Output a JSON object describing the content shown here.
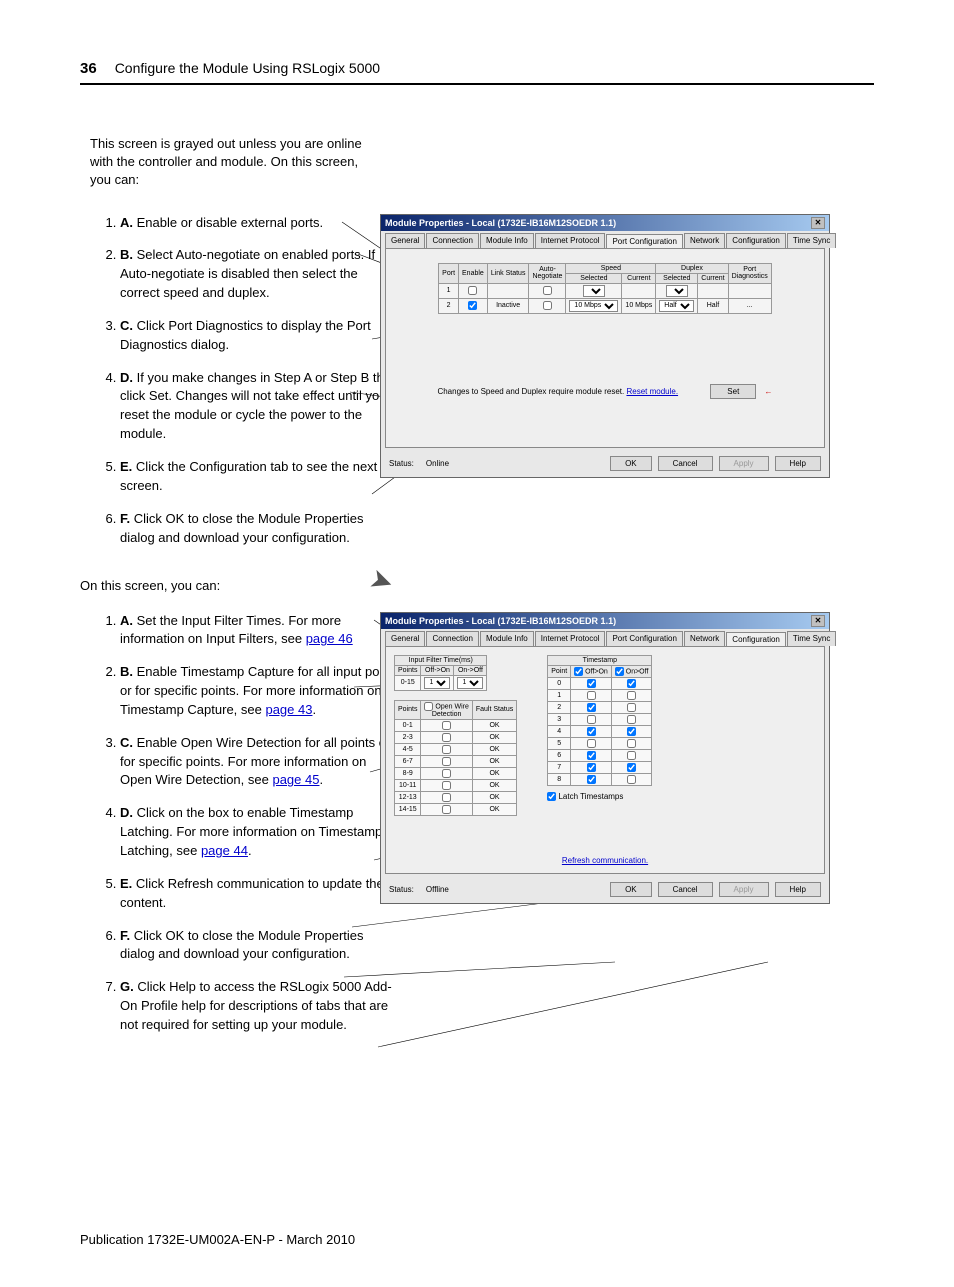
{
  "page": {
    "number": "36",
    "title": "Configure the Module Using RSLogix 5000",
    "publication": "Publication 1732E-UM002A-EN-P - March 2010"
  },
  "intro1": "This screen is grayed out unless you are online with the controller and module. On this screen, you can:",
  "intro2": "On this screen, you can:",
  "steps1": [
    {
      "label": "A.",
      "text": "Enable or disable external ports."
    },
    {
      "label": "B.",
      "text": "Select Auto-negotiate on enabled ports. If Auto-negotiate is disabled then select the correct speed and duplex."
    },
    {
      "label": "C.",
      "text": "Click Port Diagnostics to display the Port Diagnostics dialog."
    },
    {
      "label": "D.",
      "text": "If you make changes in Step A or Step B then click Set. Changes will not take effect until you reset the module or cycle the power to the module."
    },
    {
      "label": "E.",
      "text": "Click the Configuration tab to see the next screen."
    },
    {
      "label": "F.",
      "text": "Click OK to close the Module Properties dialog and download your configuration."
    }
  ],
  "steps2": [
    {
      "label": "A.",
      "text": "Set the Input Filter Times. For more information on Input Filters, see ",
      "link": "page 46"
    },
    {
      "label": "B.",
      "text": "Enable Timestamp Capture for all input points or for specific points. For more information on Timestamp Capture, see ",
      "link": "page 43"
    },
    {
      "label": "C.",
      "text": "Enable Open Wire Detection for all points or for specific points. For more information on Open Wire Detection, see ",
      "link": "page 45"
    },
    {
      "label": "D.",
      "text": "Click on the box to enable Timestamp Latching. For more information on Timestamp Latching, see ",
      "link": "page 44"
    },
    {
      "label": "E.",
      "text": "Click Refresh communication to update the content."
    },
    {
      "label": "F.",
      "text": "Click OK to close the Module Properties dialog and download your configuration."
    },
    {
      "label": "G.",
      "text": "Click Help to access the RSLogix 5000 Add-On Profile help for descriptions of tabs that are not required for setting up your module."
    }
  ],
  "dialog": {
    "title": "Module Properties - Local (1732E-IB16M12SOEDR  1.1)",
    "tabs": [
      "General",
      "Connection",
      "Module Info",
      "Internet Protocol",
      "Port Configuration",
      "Network",
      "Configuration",
      "Time Sync"
    ],
    "buttons": {
      "ok": "OK",
      "cancel": "Cancel",
      "apply": "Apply",
      "help": "Help"
    },
    "status_label": "Status:",
    "status1": "Online",
    "status2": "Offline"
  },
  "port_cfg": {
    "headers": [
      "Port",
      "Enable",
      "Link Status",
      "Auto-Negotiate",
      "Speed Selected",
      "Speed Current",
      "Duplex Selected",
      "Duplex Current",
      "Port Diagnostics"
    ],
    "rows": [
      {
        "port": "1",
        "enable": false,
        "link": "",
        "auto": false,
        "speed_sel": "",
        "speed_cur": "",
        "dup_sel": "",
        "dup_cur": "",
        "diag": ""
      },
      {
        "port": "2",
        "enable": true,
        "link": "Inactive",
        "auto": false,
        "speed_sel": "10 Mbps",
        "speed_cur": "10 Mbps",
        "dup_sel": "Half",
        "dup_cur": "Half",
        "diag": "..."
      }
    ],
    "change_msg": "Changes to Speed and Duplex require module reset.",
    "reset_link": "Reset module.",
    "set_btn": "Set"
  },
  "config_tab": {
    "filter_header": "Input Filter Time(ms)",
    "filter_cols": [
      "Points",
      "Off->On",
      "On->Off"
    ],
    "filter_row": {
      "points": "0-15",
      "off_on": "1",
      "on_off": "1"
    },
    "timestamp_header": "Timestamp",
    "timestamp_cols": [
      "Point",
      "Off>On",
      "On>Off"
    ],
    "timestamp_rows": [
      {
        "p": "0",
        "a": true,
        "b": true
      },
      {
        "p": "1",
        "a": false,
        "b": false
      },
      {
        "p": "2",
        "a": true,
        "b": false
      },
      {
        "p": "3",
        "a": false,
        "b": false
      },
      {
        "p": "4",
        "a": true,
        "b": true
      },
      {
        "p": "5",
        "a": false,
        "b": false
      },
      {
        "p": "6",
        "a": true,
        "b": false
      },
      {
        "p": "7",
        "a": true,
        "b": true
      },
      {
        "p": "8",
        "a": true,
        "b": false
      }
    ],
    "openwire_header_cols": [
      "Points",
      "Open Wire Detection",
      "Fault Status"
    ],
    "openwire_rows": [
      {
        "p": "0-1",
        "ow": false,
        "fs": "OK"
      },
      {
        "p": "2-3",
        "ow": false,
        "fs": "OK"
      },
      {
        "p": "4-5",
        "ow": false,
        "fs": "OK"
      },
      {
        "p": "6-7",
        "ow": false,
        "fs": "OK"
      },
      {
        "p": "8-9",
        "ow": false,
        "fs": "OK"
      },
      {
        "p": "10-11",
        "ow": false,
        "fs": "OK"
      },
      {
        "p": "12-13",
        "ow": false,
        "fs": "OK"
      },
      {
        "p": "14-15",
        "ow": false,
        "fs": "OK"
      }
    ],
    "latch_label": "Latch Timestamps",
    "latch_checked": true,
    "refresh_link": "Refresh communication."
  },
  "colors": {
    "titlebar_start": "#0a246a",
    "titlebar_end": "#a6caf0",
    "link": "#0000cc",
    "dialog_bg": "#e8e8e8",
    "body_bg": "#efefef"
  }
}
